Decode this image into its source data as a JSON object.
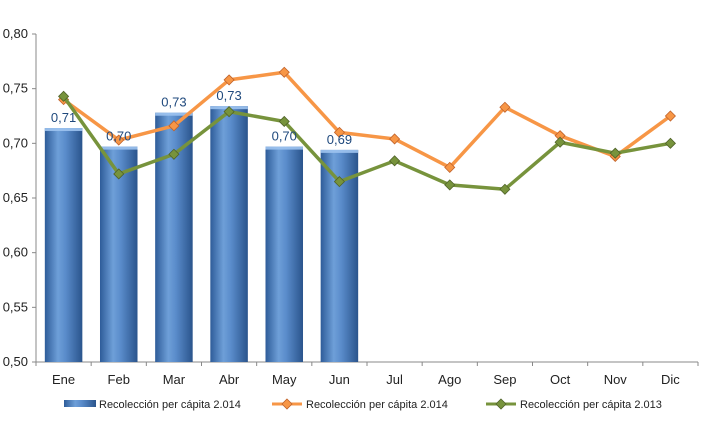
{
  "chart_data": {
    "type": "bar+line",
    "categories": [
      "Ene",
      "Feb",
      "Mar",
      "Abr",
      "May",
      "Jun",
      "Jul",
      "Ago",
      "Sep",
      "Oct",
      "Nov",
      "Dic"
    ],
    "ylim": [
      0.5,
      0.8
    ],
    "yticks": [
      "0,50",
      "0,55",
      "0,60",
      "0,65",
      "0,70",
      "0,75",
      "0,80"
    ],
    "grid": false,
    "legend_position": "bottom",
    "bars": {
      "name": "Recolección per cápita 2.014",
      "values": [
        0.714,
        0.697,
        0.728,
        0.734,
        0.697,
        0.694
      ],
      "labels": [
        "0,71",
        "0,70",
        "0,73",
        "0,73",
        "0,70",
        "0,69"
      ],
      "color": "#4F81BD"
    },
    "series": [
      {
        "name": "Recolección per cápita 2.014",
        "values": [
          0.74,
          0.703,
          0.716,
          0.758,
          0.765,
          0.71,
          0.704,
          0.678,
          0.733,
          0.707,
          0.688,
          0.725
        ],
        "color": "#F79646"
      },
      {
        "name": "Recolección per cápita 2.013",
        "values": [
          0.743,
          0.672,
          0.69,
          0.729,
          0.72,
          0.665,
          0.684,
          0.662,
          0.658,
          0.701,
          0.691,
          0.7
        ],
        "color": "#77933C"
      }
    ]
  }
}
